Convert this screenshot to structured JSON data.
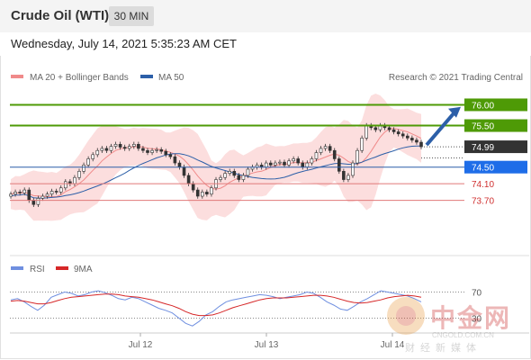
{
  "header": {
    "title": "Crude Oil (WTI)",
    "timeframe": "30 MIN"
  },
  "date_line": "Wednesday, July 14, 2021 5:35:23 AM CET",
  "legend": {
    "bands": "MA 20 + Bollinger Bands",
    "ma50": "MA 50",
    "research": "Research © 2021 Trading Central"
  },
  "rsi_legend": {
    "rsi": "RSI",
    "ma": "9MA"
  },
  "watermark": {
    "brand": "中金网",
    "url": "CNGOLD.COM.CN",
    "sub": "财经新媒体"
  },
  "colors": {
    "resistance": "#4e9a06",
    "support_line": "#e07878",
    "pivot": "#2c5fa8",
    "current": "#333333",
    "up_arrow": "#2c5fa8",
    "rsi": "#6f8fe0",
    "rsi_ma": "#d62728"
  },
  "chart_data": [
    {
      "type": "candlestick",
      "title": "Crude Oil (WTI)",
      "timeframe": "30 MIN",
      "x_labels": [
        "Jul 12",
        "Jul 13",
        "Jul 14"
      ],
      "ylim": [
        72.5,
        76.4
      ],
      "closes": [
        73.85,
        73.9,
        73.88,
        73.95,
        73.7,
        73.6,
        73.75,
        73.8,
        73.85,
        73.92,
        73.9,
        74.0,
        74.15,
        74.1,
        74.25,
        74.4,
        74.55,
        74.7,
        74.8,
        74.9,
        74.95,
        74.9,
        75.0,
        75.05,
        74.98,
        74.95,
        75.0,
        75.05,
        74.95,
        74.9,
        74.85,
        74.9,
        74.92,
        74.88,
        74.8,
        74.75,
        74.6,
        74.5,
        74.3,
        74.1,
        73.95,
        73.8,
        73.9,
        73.85,
        74.0,
        74.2,
        74.25,
        74.35,
        74.4,
        74.3,
        74.2,
        74.3,
        74.45,
        74.5,
        74.55,
        74.5,
        74.6,
        74.55,
        74.6,
        74.62,
        74.55,
        74.65,
        74.7,
        74.6,
        74.5,
        74.6,
        74.7,
        74.85,
        74.95,
        75.0,
        74.9,
        74.7,
        74.4,
        74.2,
        74.3,
        74.6,
        74.9,
        75.2,
        75.5,
        75.45,
        75.4,
        75.5,
        75.45,
        75.4,
        75.35,
        75.3,
        75.25,
        75.2,
        75.15,
        75.1,
        74.99
      ],
      "ma20_band": {
        "upper_hint": "shaded",
        "color": "#f4a6a6"
      },
      "levels": [
        {
          "value": "76.00",
          "label": "76.00",
          "kind": "resistance"
        },
        {
          "value": "75.50",
          "label": "75.50",
          "kind": "resistance"
        },
        {
          "value": "74.99",
          "label": "74.99",
          "kind": "current"
        },
        {
          "value": "74.50",
          "label": "74.50",
          "kind": "pivot"
        },
        {
          "value": "74.10",
          "label": "74.10",
          "kind": "support"
        },
        {
          "value": "73.70",
          "label": "73.70",
          "kind": "support"
        }
      ],
      "legend": [
        "MA 20 + Bollinger Bands",
        "MA 50"
      ]
    },
    {
      "type": "line",
      "title": "RSI",
      "series": [
        {
          "name": "RSI",
          "values": [
            58,
            60,
            55,
            48,
            42,
            50,
            62,
            66,
            70,
            68,
            64,
            66,
            70,
            72,
            69,
            65,
            60,
            58,
            62,
            60,
            55,
            50,
            45,
            42,
            38,
            30,
            22,
            18,
            25,
            35,
            40,
            48,
            55,
            58,
            60,
            62,
            64,
            66,
            65,
            63,
            60,
            62,
            64,
            66,
            70,
            68,
            62,
            55,
            50,
            44,
            42,
            48,
            55,
            60,
            66,
            72,
            70,
            68,
            66,
            64,
            60,
            55
          ]
        },
        {
          "name": "9MA",
          "values": [
            56,
            57,
            56,
            54,
            52,
            52,
            54,
            57,
            60,
            62,
            63,
            64,
            65,
            66,
            67,
            67,
            66,
            64,
            63,
            62,
            60,
            58,
            55,
            52,
            49,
            45,
            40,
            36,
            34,
            34,
            35,
            38,
            42,
            46,
            49,
            52,
            55,
            58,
            60,
            61,
            61,
            61,
            62,
            63,
            64,
            65,
            65,
            64,
            62,
            59,
            56,
            54,
            53,
            54,
            56,
            58,
            61,
            63,
            64,
            65,
            64,
            62
          ]
        }
      ],
      "ticks": [
        "70",
        "30"
      ]
    }
  ]
}
